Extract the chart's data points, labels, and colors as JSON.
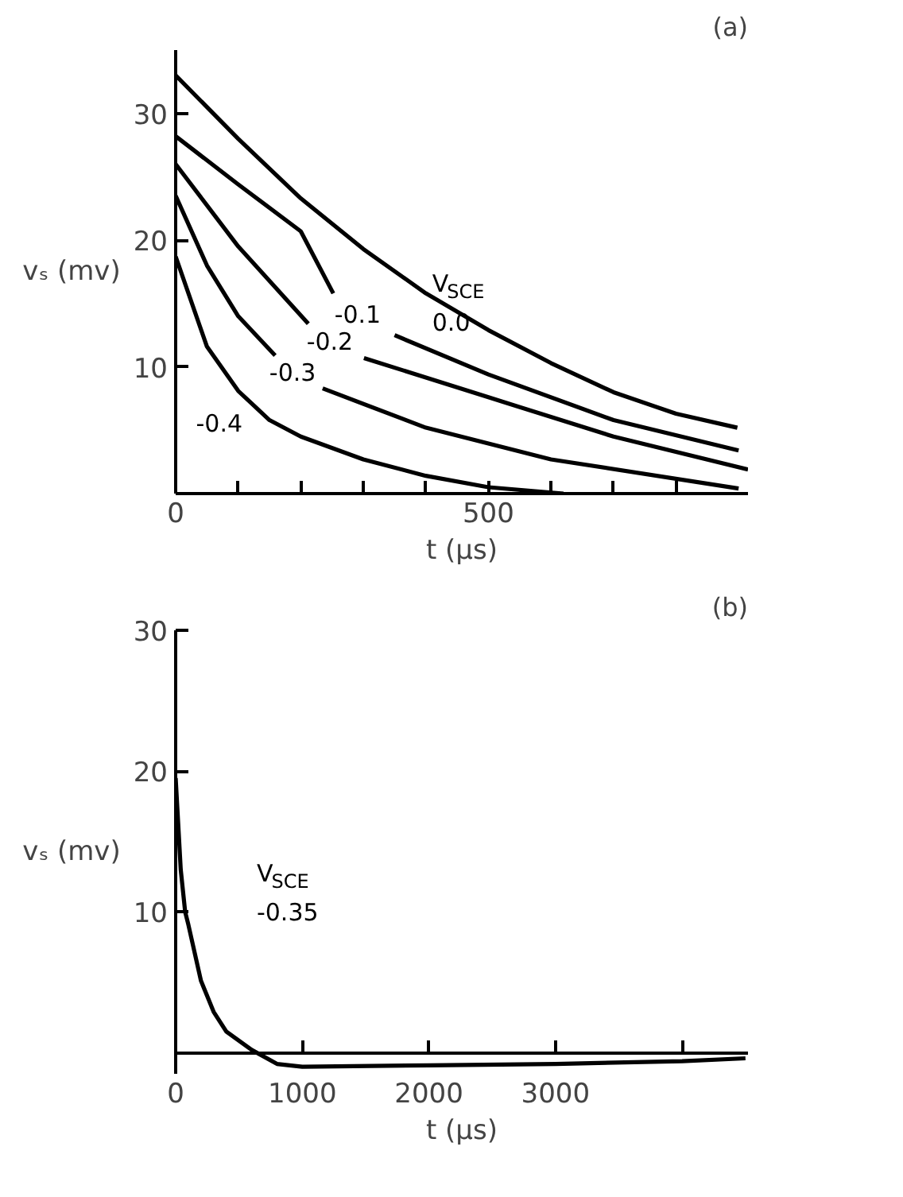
{
  "chart_data": [
    {
      "type": "line",
      "title": "(a)",
      "xlabel": "t (μs)",
      "ylabel": "vₛ (mv)",
      "xlim": [
        0,
        915
      ],
      "ylim": [
        0,
        35
      ],
      "xticks": [
        0,
        {
          "value": 100,
          "label": null
        },
        {
          "value": 200,
          "label": null
        },
        {
          "value": 300,
          "label": null
        },
        {
          "value": 400,
          "label": null
        },
        500,
        {
          "value": 600,
          "label": null
        },
        {
          "value": 700,
          "label": null
        },
        {
          "value": 800,
          "label": null
        }
      ],
      "yticks": [
        10,
        20,
        30
      ],
      "grid": false,
      "series": [
        {
          "name": "0.0",
          "color": "#000000",
          "x": [
            0,
            100,
            200,
            300,
            400,
            500,
            600,
            700,
            800,
            898
          ],
          "values": [
            33,
            28,
            23.3,
            19.3,
            15.8,
            12.9,
            10.3,
            8.0,
            6.3,
            5.2
          ]
        },
        {
          "name": "-0.1",
          "color": "#000000",
          "x": [
            0,
            100,
            200,
            252,
            300,
            350,
            500,
            700,
            900
          ],
          "values": [
            28.2,
            24.4,
            20.7,
            15.8,
            null,
            12.5,
            9.4,
            5.8,
            3.4
          ]
        },
        {
          "name": "-0.2",
          "color": "#000000",
          "x": [
            0,
            100,
            212,
            260,
            301,
            500,
            700,
            915
          ],
          "values": [
            26,
            19.5,
            13.4,
            null,
            10.7,
            7.6,
            4.5,
            1.9
          ]
        },
        {
          "name": "-0.3",
          "color": "#000000",
          "x": [
            0,
            50,
            100,
            159,
            200,
            235,
            400,
            600,
            900
          ],
          "values": [
            23.5,
            18,
            14,
            10.9,
            null,
            8.3,
            5.2,
            2.7,
            0.4
          ]
        },
        {
          "name": "-0.4",
          "color": "#000000",
          "x": [
            0,
            50,
            100,
            150,
            200,
            300,
            400,
            500,
            620
          ],
          "values": [
            18.7,
            11.6,
            8.1,
            5.8,
            4.5,
            2.7,
            1.4,
            0.5,
            0
          ]
        }
      ],
      "annotations": [
        "V$_{SCE}$"
      ]
    },
    {
      "type": "line",
      "title": "(b)",
      "xlabel": "t (μs)",
      "ylabel": "vₛ (mv)",
      "xlim": [
        0,
        4520
      ],
      "ylim": [
        -1.5,
        30
      ],
      "xticks": [
        0,
        1000,
        2000,
        3000,
        {
          "value": 4000,
          "label": null
        }
      ],
      "yticks": [
        10,
        20,
        30
      ],
      "grid": false,
      "series": [
        {
          "name": "-0.35",
          "color": "#000000",
          "x": [
            0,
            40,
            75,
            100,
            200,
            300,
            400,
            600,
            800,
            1000,
            2000,
            3000,
            4000,
            4500
          ],
          "values": [
            19.5,
            13,
            10,
            9.1,
            5.1,
            2.9,
            1.5,
            0.2,
            -0.8,
            -1.0,
            -0.9,
            -0.8,
            -0.6,
            -0.4
          ]
        }
      ],
      "annotations": [
        "V$_{SCE}$"
      ]
    }
  ]
}
